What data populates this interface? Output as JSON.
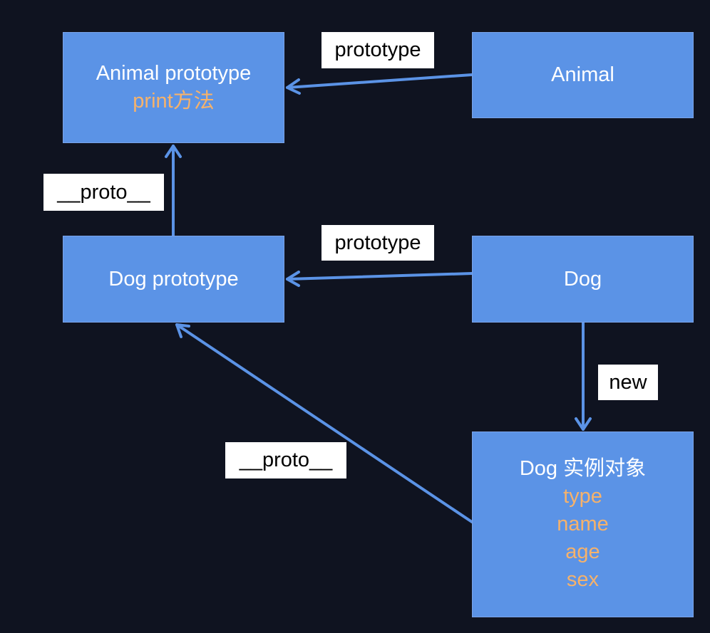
{
  "colors": {
    "background": "#0f1320",
    "box_fill": "#5b93e6",
    "arrow": "#5b93e6",
    "highlight_text": "#f6b26b",
    "label_fill": "#ffffff"
  },
  "nodes": {
    "animal_prototype": {
      "title": "Animal prototype",
      "members": [
        "print方法"
      ]
    },
    "animal": {
      "title": "Animal"
    },
    "dog_prototype": {
      "title": "Dog prototype"
    },
    "dog": {
      "title": "Dog"
    },
    "dog_instance": {
      "title": "Dog 实例对象",
      "members": [
        "type",
        "name",
        "age",
        "sex"
      ]
    }
  },
  "edges": [
    {
      "from": "animal",
      "to": "animal_prototype",
      "label": "prototype"
    },
    {
      "from": "dog_prototype",
      "to": "animal_prototype",
      "label": "__proto__"
    },
    {
      "from": "dog",
      "to": "dog_prototype",
      "label": "prototype"
    },
    {
      "from": "dog",
      "to": "dog_instance",
      "label": "new"
    },
    {
      "from": "dog_instance",
      "to": "dog_prototype",
      "label": "__proto__"
    }
  ]
}
